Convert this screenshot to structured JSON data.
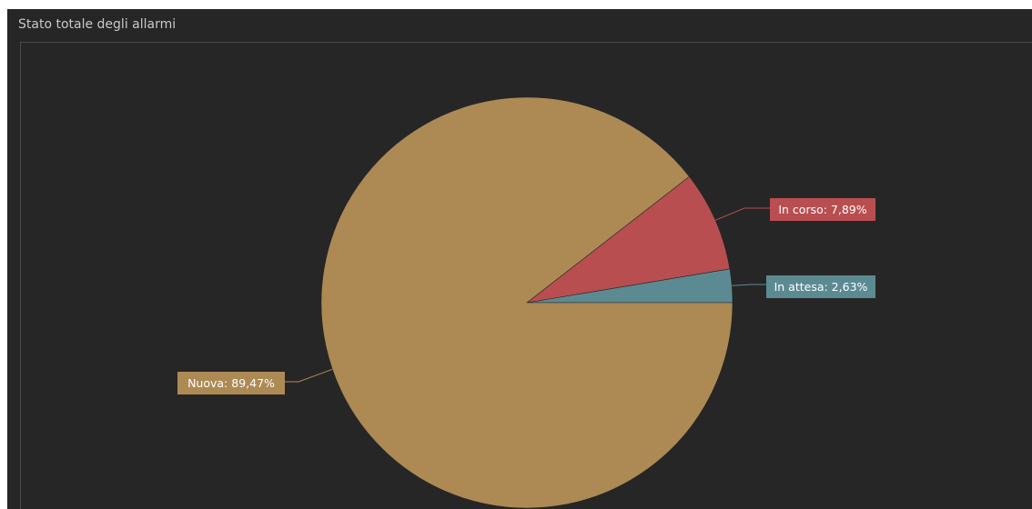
{
  "panel": {
    "title": "Stato totale degli allarmi"
  },
  "chart_data": {
    "type": "pie",
    "title": "Stato totale degli allarmi",
    "slices": [
      {
        "name": "In attesa",
        "value": 2.63,
        "label": "In attesa: 2,63%",
        "color": "#5b8a92"
      },
      {
        "name": "In corso",
        "value": 7.89,
        "label": "In corso: 7,89%",
        "color": "#b94e50"
      },
      {
        "name": "Nuova",
        "value": 89.47,
        "label": "Nuova: 89,47%",
        "color": "#ad8a54"
      }
    ],
    "start_angle_deg": 0,
    "direction": "counterclockwise",
    "legend": "none",
    "label_style": "callout boxes with leader lines"
  },
  "colors": {
    "panel_background": "#262626",
    "title_text": "#c9c9c9",
    "frame_line": "#4a4a4a"
  }
}
